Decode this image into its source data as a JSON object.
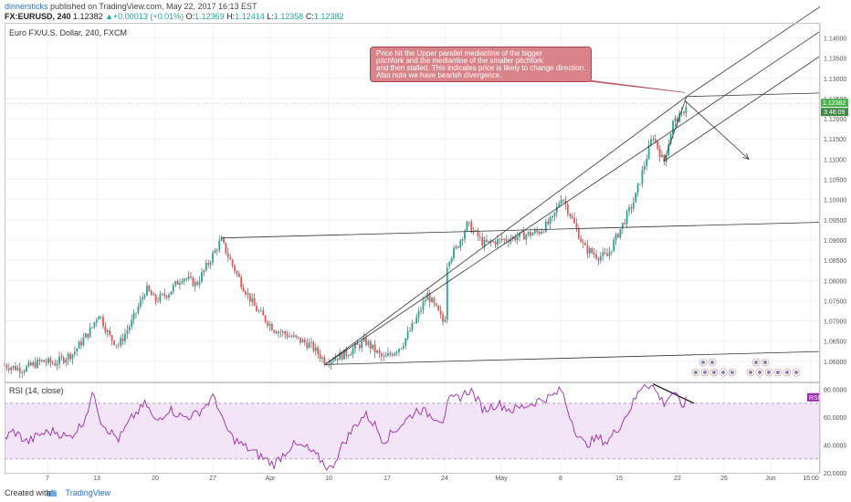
{
  "header": {
    "user": "dinnersticks",
    "published": "published on TradingView.com, May 22, 2017 16:13 EST",
    "symbol": "FX:EURUSD, 240",
    "last": "1.12382",
    "change": "+0.00013 (+0.01%)",
    "o_label": "O:",
    "o_value": "1.12369",
    "h_label": "H:",
    "h_value": "1.12414",
    "l_label": "L:",
    "l_value": "1.12358",
    "c_label": "C:",
    "c_value": "1.12382"
  },
  "main_title": "Euro FX/U.S. Dollar, 240, FXCM",
  "rsi_title": "RSI (14, close)",
  "annotation": [
    "Price hit the Upper parallel medianline of the bigger",
    "pitchfork and the medianline of the smaller pitchfork",
    "and then stalled. This indicates price is likely to change direction.",
    "Also note we have bearish divergence."
  ],
  "footer": {
    "created": "Created with",
    "brand": "TradingView"
  },
  "colors": {
    "up": "#26a69a",
    "down": "#ef5350",
    "wick": "#333333",
    "rsi": "#9c27b0",
    "rsi_band": "#f3e5f8",
    "annotation": "#d9848a",
    "price_tag": "#4caf50"
  },
  "chart_data": [
    {
      "type": "candlestick",
      "title": "Euro FX/U.S. Dollar, 240, FXCM",
      "y_axis_position": "right",
      "ylim": [
        1.055,
        1.1435
      ],
      "y_ticks": [
        "1.14000",
        "1.13500",
        "1.13000",
        "1.12500",
        "1.12000",
        "1.11500",
        "1.11000",
        "1.10500",
        "1.10000",
        "1.09500",
        "1.09000",
        "1.08500",
        "1.08000",
        "1.07500",
        "1.07000",
        "1.06500",
        "1.06000"
      ],
      "x_ticks": [
        {
          "label": "7",
          "t": 52
        },
        {
          "label": "13",
          "t": 106
        },
        {
          "label": "20",
          "t": 170
        },
        {
          "label": "27",
          "t": 233
        },
        {
          "label": "Apr",
          "t": 296
        },
        {
          "label": "10",
          "t": 360
        },
        {
          "label": "17",
          "t": 424
        },
        {
          "label": "24",
          "t": 487
        },
        {
          "label": "May",
          "t": 549
        },
        {
          "label": "8",
          "t": 614
        },
        {
          "label": "15",
          "t": 678
        },
        {
          "label": "22",
          "t": 742
        },
        {
          "label": "26",
          "t": 793
        },
        {
          "label": "Jun",
          "t": 844
        },
        {
          "label": "15:00",
          "t": 888
        }
      ],
      "last_price": "1.12382",
      "countdown": "3:46:09",
      "price_anchors": [
        [
          5,
          1.059
        ],
        [
          25,
          1.058
        ],
        [
          45,
          1.06
        ],
        [
          60,
          1.0595
        ],
        [
          80,
          1.062
        ],
        [
          100,
          1.068
        ],
        [
          108,
          1.072
        ],
        [
          120,
          1.066
        ],
        [
          130,
          1.064
        ],
        [
          145,
          1.07
        ],
        [
          160,
          1.078
        ],
        [
          170,
          1.075
        ],
        [
          185,
          1.077
        ],
        [
          200,
          1.081
        ],
        [
          215,
          1.079
        ],
        [
          230,
          1.085
        ],
        [
          242,
          1.09
        ],
        [
          252,
          1.085
        ],
        [
          265,
          1.079
        ],
        [
          280,
          1.073
        ],
        [
          300,
          1.068
        ],
        [
          320,
          1.066
        ],
        [
          340,
          1.064
        ],
        [
          356,
          1.06
        ],
        [
          380,
          1.062
        ],
        [
          400,
          1.065
        ],
        [
          420,
          1.0605
        ],
        [
          440,
          1.064
        ],
        [
          455,
          1.07
        ],
        [
          468,
          1.0765
        ],
        [
          480,
          1.072
        ],
        [
          487,
          1.069
        ],
        [
          490,
          1.085
        ],
        [
          500,
          1.088
        ],
        [
          512,
          1.094
        ],
        [
          530,
          1.089
        ],
        [
          550,
          1.09
        ],
        [
          570,
          1.091
        ],
        [
          590,
          1.092
        ],
        [
          605,
          1.095
        ],
        [
          615,
          1.101
        ],
        [
          625,
          1.096
        ],
        [
          640,
          1.088
        ],
        [
          655,
          1.086
        ],
        [
          665,
          1.086
        ],
        [
          680,
          1.093
        ],
        [
          695,
          1.1
        ],
        [
          705,
          1.108
        ],
        [
          715,
          1.116
        ],
        [
          727,
          1.109
        ],
        [
          737,
          1.119
        ],
        [
          747,
          1.121
        ],
        [
          752,
          1.1238
        ]
      ],
      "pitchforks": [
        {
          "name": "",
          "pivots": [
            [
              242,
              1.0905
            ],
            [
              356,
              1.0592
            ],
            [
              752,
              1.1255
            ]
          ]
        },
        {
          "name": "",
          "pivots": [
            [
              356,
              1.0592
            ],
            [
              727,
              1.1095
            ],
            [
              752,
              1.1255
            ]
          ]
        }
      ],
      "projection_arrow": {
        "from": [
          750,
          1.1245
        ],
        "to": [
          820,
          1.11
        ]
      },
      "callout_pointer": [
        750,
        1.1265
      ]
    },
    {
      "type": "line",
      "title": "RSI (14, close)",
      "ylim": [
        20,
        85
      ],
      "y_ticks": [
        "80.0000",
        "60.0000",
        "40.0000",
        "20.0000"
      ],
      "bands": [
        30,
        70
      ],
      "last_value_label": "RSI",
      "divergence_line": {
        "from": [
          715,
          84
        ],
        "to": [
          760,
          70
        ]
      },
      "rsi_anchors": [
        [
          5,
          45
        ],
        [
          15,
          50
        ],
        [
          30,
          42
        ],
        [
          45,
          48
        ],
        [
          60,
          50
        ],
        [
          75,
          45
        ],
        [
          90,
          55
        ],
        [
          103,
          78
        ],
        [
          110,
          58
        ],
        [
          120,
          50
        ],
        [
          130,
          44
        ],
        [
          145,
          60
        ],
        [
          160,
          70
        ],
        [
          170,
          56
        ],
        [
          185,
          66
        ],
        [
          200,
          60
        ],
        [
          215,
          62
        ],
        [
          235,
          75
        ],
        [
          245,
          55
        ],
        [
          255,
          45
        ],
        [
          265,
          40
        ],
        [
          280,
          34
        ],
        [
          300,
          26
        ],
        [
          320,
          40
        ],
        [
          335,
          38
        ],
        [
          350,
          30
        ],
        [
          362,
          22
        ],
        [
          375,
          40
        ],
        [
          390,
          55
        ],
        [
          400,
          62
        ],
        [
          410,
          55
        ],
        [
          420,
          43
        ],
        [
          440,
          55
        ],
        [
          458,
          66
        ],
        [
          470,
          62
        ],
        [
          485,
          58
        ],
        [
          492,
          72
        ],
        [
          505,
          75
        ],
        [
          515,
          80
        ],
        [
          530,
          65
        ],
        [
          545,
          70
        ],
        [
          560,
          65
        ],
        [
          575,
          68
        ],
        [
          590,
          72
        ],
        [
          605,
          75
        ],
        [
          615,
          80
        ],
        [
          622,
          65
        ],
        [
          632,
          48
        ],
        [
          640,
          40
        ],
        [
          655,
          45
        ],
        [
          665,
          42
        ],
        [
          680,
          55
        ],
        [
          695,
          72
        ],
        [
          705,
          85
        ],
        [
          715,
          82
        ],
        [
          727,
          70
        ],
        [
          737,
          78
        ],
        [
          747,
          68
        ],
        [
          752,
          72
        ]
      ]
    }
  ]
}
